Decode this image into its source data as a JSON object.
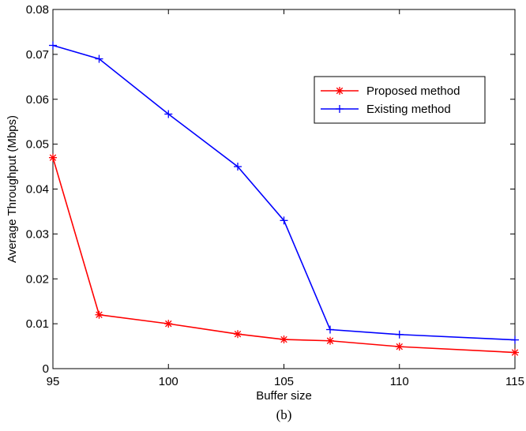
{
  "chart_data": {
    "type": "line",
    "title": "",
    "xlabel": "Buffer size",
    "ylabel": "Average Throughput (Mbps)",
    "xlim": [
      95,
      115
    ],
    "ylim": [
      0,
      0.08
    ],
    "x_ticks": [
      95,
      100,
      105,
      110,
      115
    ],
    "x_tick_labels": [
      "95",
      "100",
      "105",
      "110",
      "115"
    ],
    "y_ticks": [
      0,
      0.01,
      0.02,
      0.03,
      0.04,
      0.05,
      0.06,
      0.07,
      0.08
    ],
    "y_tick_labels": [
      "0",
      "0.01",
      "0.02",
      "0.03",
      "0.04",
      "0.05",
      "0.06",
      "0.07",
      "0.08"
    ],
    "grid": false,
    "legend_position": "top-right",
    "x": [
      95,
      97,
      100,
      103,
      105,
      107,
      110,
      115
    ],
    "series": [
      {
        "name": "Proposed method",
        "color": "#ff0000",
        "marker": "asterisk",
        "values": [
          0.047,
          0.012,
          0.01,
          0.0077,
          0.0065,
          0.0062,
          0.0049,
          0.0036
        ]
      },
      {
        "name": "Existing method",
        "color": "#0000ff",
        "marker": "plus",
        "values": [
          0.072,
          0.069,
          0.0567,
          0.045,
          0.033,
          0.0087,
          0.0076,
          0.0064
        ]
      }
    ],
    "caption": "(b)"
  }
}
